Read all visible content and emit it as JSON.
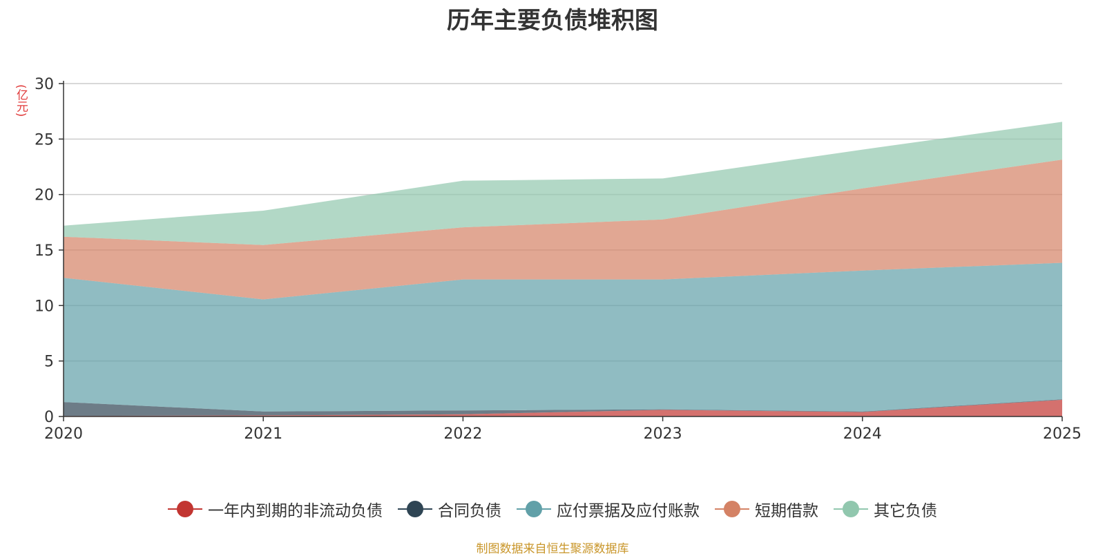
{
  "chart_data": {
    "type": "area",
    "stacked": true,
    "title": "历年主要负债堆积图",
    "ylabel": "(亿元)",
    "xlabel": "",
    "x": [
      "2020",
      "2021",
      "2022",
      "2023",
      "2024",
      "2025"
    ],
    "ylim": [
      0,
      30
    ],
    "yticks": [
      0,
      5,
      10,
      15,
      20,
      25,
      30
    ],
    "grid": true,
    "legend_position": "bottom",
    "series": [
      {
        "name": "一年内到期的非流动负债",
        "color": "#c23531",
        "values": [
          0.05,
          0.1,
          0.2,
          0.6,
          0.4,
          1.5
        ]
      },
      {
        "name": "合同负债",
        "color": "#2f4554",
        "values": [
          1.25,
          0.35,
          0.35,
          0.05,
          0.05,
          0.05
        ]
      },
      {
        "name": "应付票据及应付账款",
        "color": "#61a0a8",
        "values": [
          11.2,
          10.1,
          11.8,
          11.7,
          12.7,
          12.3
        ]
      },
      {
        "name": "短期借款",
        "color": "#d48265",
        "values": [
          3.7,
          4.9,
          4.7,
          5.4,
          7.4,
          9.3
        ]
      },
      {
        "name": "其它负债",
        "color": "#91c7ae",
        "values": [
          1.0,
          3.1,
          4.2,
          3.7,
          3.5,
          3.4
        ]
      }
    ],
    "source_note": "制图数据来自恒生聚源数据库"
  }
}
